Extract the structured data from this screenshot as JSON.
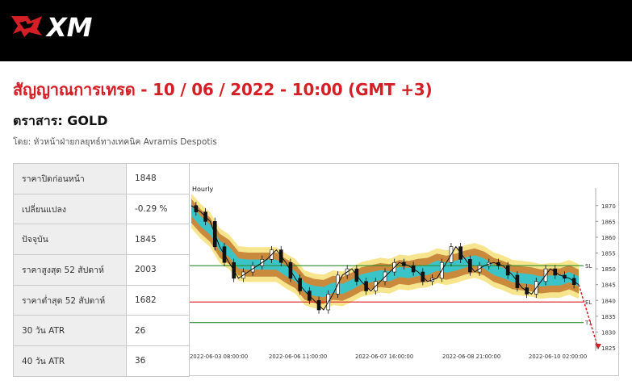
{
  "brand": {
    "logo_text": "XM",
    "colors": {
      "header_bg": "#000000",
      "logo_red": "#d51f26",
      "title_red": "#d51f26"
    }
  },
  "title": "สัญญาณการเทรด - 10 / 06 / 2022 - 10:00 (GMT +3)",
  "instrument": "ตราสาร: GOLD",
  "author": "โดย: หัวหน้าฝ่ายกลยุทธ์ทางเทคนิค Avramis Despotis",
  "stats": [
    {
      "label": "ราคาปิดก่อนหน้า",
      "value": "1848"
    },
    {
      "label": "เปลี่ยนแปลง",
      "value": "-0.29 %"
    },
    {
      "label": "ปัจจุบัน",
      "value": "1845"
    },
    {
      "label": "ราคาสูงสุด 52 สัปดาห์",
      "value": "2003"
    },
    {
      "label": "ราคาต่ำสุด 52 สัปดาห์",
      "value": "1682"
    },
    {
      "label": "30 วัน ATR",
      "value": "26"
    },
    {
      "label": "40 วัน ATR",
      "value": "36"
    }
  ],
  "chart_data": {
    "type": "line",
    "timeframe": "Hourly",
    "ylim": [
      1825,
      1873
    ],
    "y_ticks": [
      "1870",
      "1865",
      "1860",
      "1855",
      "1850",
      "1845",
      "1840",
      "1835",
      "1830",
      "1825"
    ],
    "x_ticks": [
      "2022-06-03 08:00:00",
      "2022-06-06 11:00:00",
      "2022-06-07 16:00:00",
      "2022-06-08 21:00:00",
      "2022-06-10 02:00:00"
    ],
    "levels": [
      {
        "name": "SL",
        "value": 1851,
        "color": "#2e8b2e"
      },
      {
        "name": "EL",
        "value": 1839.5,
        "color": "#d51f26"
      },
      {
        "name": "T1",
        "value": 1833,
        "color": "#2e8b2e"
      }
    ],
    "price_path": [
      1870,
      1868,
      1865,
      1857,
      1852,
      1847,
      1849,
      1851,
      1853,
      1856,
      1852,
      1847,
      1843,
      1840,
      1837,
      1842,
      1848,
      1850,
      1846,
      1843,
      1846,
      1849,
      1852,
      1851,
      1849,
      1846,
      1847,
      1852,
      1857,
      1853,
      1849,
      1851,
      1852,
      1851,
      1848,
      1844,
      1842,
      1846,
      1850,
      1848,
      1847,
      1845
    ],
    "projection": [
      1845,
      1835,
      1825
    ],
    "colors": {
      "band_outer": "#c98a3e",
      "band_inner": "#3bc4c8",
      "band_light": "#f6e07a",
      "candles": "#111111"
    }
  }
}
